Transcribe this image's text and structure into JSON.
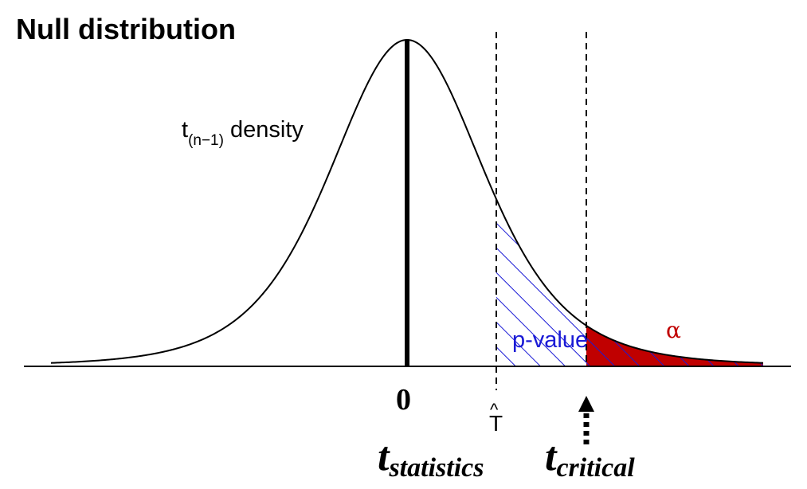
{
  "title": "Null distribution",
  "density_label": {
    "main": "t",
    "subscript": "(n−1)",
    "suffix": " density"
  },
  "p_value_label": "p-value",
  "alpha_label": "α",
  "zero_label": "0",
  "t_hat_label": "T",
  "t_hat_accent": "^",
  "t_statistics": {
    "main": "t",
    "subscript": "statistics"
  },
  "t_critical": {
    "main": "t",
    "subscript": "critical"
  },
  "colors": {
    "curve": "#000000",
    "p_value_hatch": "#1a1ad6",
    "alpha_fill": "#c00000",
    "alpha_text": "#c00000"
  }
}
